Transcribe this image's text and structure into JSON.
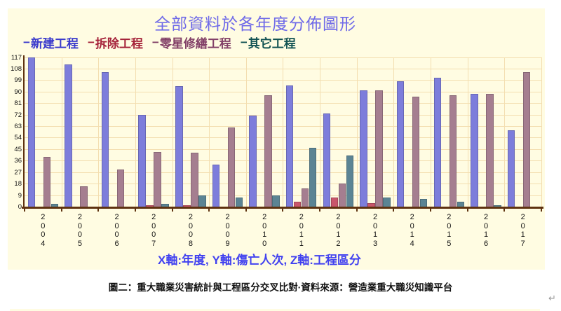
{
  "title": "全部資料於各年度分佈圖形",
  "legend": {
    "items": [
      {
        "marker": "−",
        "label": "新建工程",
        "text_color": "#3A3ACC"
      },
      {
        "marker": "−",
        "label": "拆除工程",
        "text_color": "#A52239"
      },
      {
        "marker": "−",
        "label": "零星修繕工程",
        "text_color": "#824067"
      },
      {
        "marker": "−",
        "label": "其它工程",
        "text_color": "#115252"
      }
    ]
  },
  "chart_data": {
    "type": "bar",
    "title": "全部資料於各年度分佈圖形",
    "categories": [
      "2004",
      "2005",
      "2006",
      "2007",
      "2008",
      "2009",
      "2010",
      "2011",
      "2012",
      "2013",
      "2014",
      "2015",
      "2016",
      "2017"
    ],
    "series": [
      {
        "name": "新建工程",
        "color": "#7D7DDB",
        "values": [
          117,
          111,
          105,
          72,
          94,
          33,
          71,
          95,
          73,
          91,
          98,
          101,
          88,
          60
        ]
      },
      {
        "name": "拆除工程",
        "color": "#C8566B",
        "values": [
          0,
          0,
          0,
          1,
          1,
          0,
          0,
          4,
          7,
          3,
          0,
          0,
          0,
          0
        ]
      },
      {
        "name": "零星修繕工程",
        "color": "#A57E90",
        "values": [
          39,
          16,
          29,
          43,
          42,
          62,
          87,
          14,
          18,
          91,
          86,
          87,
          88,
          105
        ]
      },
      {
        "name": "其它工程",
        "color": "#5B8494",
        "values": [
          2,
          0,
          0,
          2,
          9,
          7,
          9,
          46,
          40,
          7,
          6,
          4,
          1,
          0
        ]
      }
    ],
    "xlabel": "年度",
    "ylabel": "傷亡人次",
    "zlabel": "工程區分",
    "ylim": [
      0,
      117
    ],
    "ytick_step": 9,
    "yticks": [
      0,
      9,
      18,
      27,
      36,
      45,
      54,
      63,
      72,
      81,
      90,
      99,
      108,
      117
    ],
    "grid": true,
    "legend_position": "top"
  },
  "axis_note": "X軸:年度, Y軸:傷亡人次, Z軸:工程區分",
  "caption": "圖二：重大職業災害統計與工程區分交叉比對·資料來源：營造業重大職災知識平台",
  "return_mark": "↵",
  "colors": {
    "panel_bg": "#FFFCE2",
    "grid": "#F3DEB0",
    "axis": "#5E3210",
    "title": "#6F6AE8",
    "axis_note": "#4141F0"
  }
}
